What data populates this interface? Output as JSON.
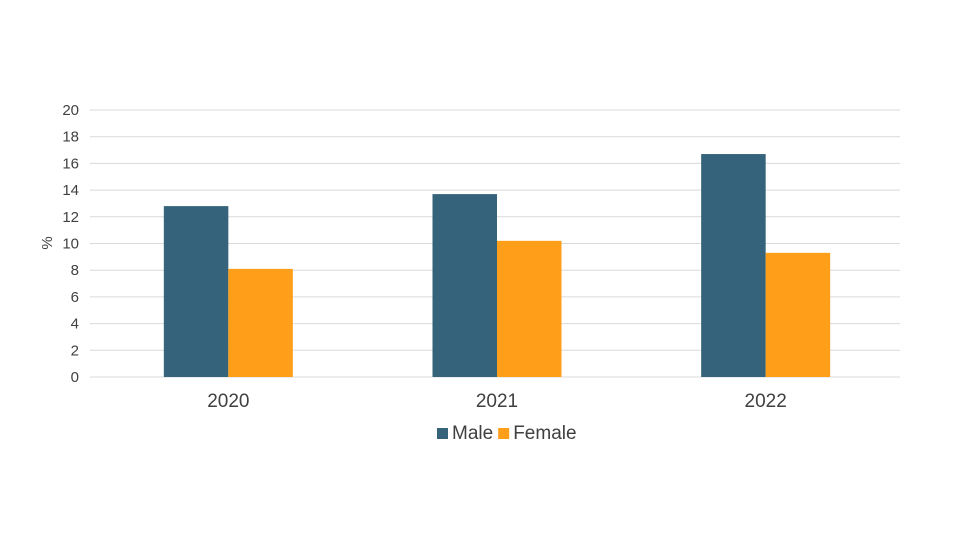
{
  "chart_data": {
    "type": "bar",
    "title": "",
    "xlabel": "",
    "ylabel": "%",
    "categories": [
      "2020",
      "2021",
      "2022"
    ],
    "series": [
      {
        "name": "Male",
        "color": "#35637B",
        "values": [
          12.8,
          13.7,
          16.7
        ]
      },
      {
        "name": "Female",
        "color": "#FF9E18",
        "values": [
          8.1,
          10.2,
          9.3
        ]
      }
    ],
    "ylim": [
      0,
      20
    ],
    "yticks": [
      "0",
      "2",
      "4",
      "6",
      "8",
      "10",
      "12",
      "14",
      "16",
      "18",
      "20"
    ],
    "grid": true,
    "legend_position": "bottom"
  }
}
